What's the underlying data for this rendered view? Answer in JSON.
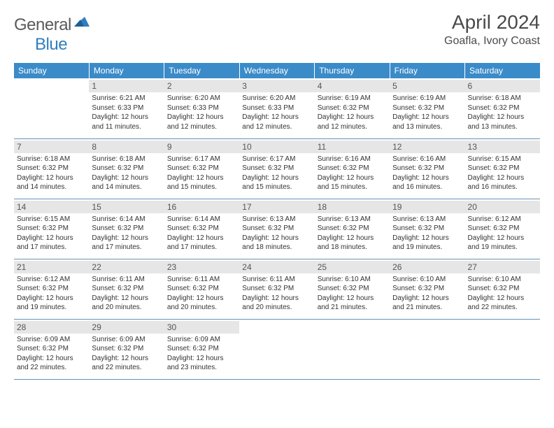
{
  "brand": {
    "text1": "General",
    "text2": "Blue"
  },
  "title": "April 2024",
  "location": "Goafla, Ivory Coast",
  "colors": {
    "header_bg": "#3b8bc9",
    "header_text": "#ffffff",
    "daynum_bg": "#e6e6e6",
    "border": "#6592b8",
    "brand_gray": "#5a5a5a",
    "brand_blue": "#2f7fbf"
  },
  "weekdays": [
    "Sunday",
    "Monday",
    "Tuesday",
    "Wednesday",
    "Thursday",
    "Friday",
    "Saturday"
  ],
  "weeks": [
    [
      {
        "day": "",
        "lines": []
      },
      {
        "day": "1",
        "lines": [
          "Sunrise: 6:21 AM",
          "Sunset: 6:33 PM",
          "Daylight: 12 hours and 11 minutes."
        ]
      },
      {
        "day": "2",
        "lines": [
          "Sunrise: 6:20 AM",
          "Sunset: 6:33 PM",
          "Daylight: 12 hours and 12 minutes."
        ]
      },
      {
        "day": "3",
        "lines": [
          "Sunrise: 6:20 AM",
          "Sunset: 6:33 PM",
          "Daylight: 12 hours and 12 minutes."
        ]
      },
      {
        "day": "4",
        "lines": [
          "Sunrise: 6:19 AM",
          "Sunset: 6:32 PM",
          "Daylight: 12 hours and 12 minutes."
        ]
      },
      {
        "day": "5",
        "lines": [
          "Sunrise: 6:19 AM",
          "Sunset: 6:32 PM",
          "Daylight: 12 hours and 13 minutes."
        ]
      },
      {
        "day": "6",
        "lines": [
          "Sunrise: 6:18 AM",
          "Sunset: 6:32 PM",
          "Daylight: 12 hours and 13 minutes."
        ]
      }
    ],
    [
      {
        "day": "7",
        "lines": [
          "Sunrise: 6:18 AM",
          "Sunset: 6:32 PM",
          "Daylight: 12 hours and 14 minutes."
        ]
      },
      {
        "day": "8",
        "lines": [
          "Sunrise: 6:18 AM",
          "Sunset: 6:32 PM",
          "Daylight: 12 hours and 14 minutes."
        ]
      },
      {
        "day": "9",
        "lines": [
          "Sunrise: 6:17 AM",
          "Sunset: 6:32 PM",
          "Daylight: 12 hours and 15 minutes."
        ]
      },
      {
        "day": "10",
        "lines": [
          "Sunrise: 6:17 AM",
          "Sunset: 6:32 PM",
          "Daylight: 12 hours and 15 minutes."
        ]
      },
      {
        "day": "11",
        "lines": [
          "Sunrise: 6:16 AM",
          "Sunset: 6:32 PM",
          "Daylight: 12 hours and 15 minutes."
        ]
      },
      {
        "day": "12",
        "lines": [
          "Sunrise: 6:16 AM",
          "Sunset: 6:32 PM",
          "Daylight: 12 hours and 16 minutes."
        ]
      },
      {
        "day": "13",
        "lines": [
          "Sunrise: 6:15 AM",
          "Sunset: 6:32 PM",
          "Daylight: 12 hours and 16 minutes."
        ]
      }
    ],
    [
      {
        "day": "14",
        "lines": [
          "Sunrise: 6:15 AM",
          "Sunset: 6:32 PM",
          "Daylight: 12 hours and 17 minutes."
        ]
      },
      {
        "day": "15",
        "lines": [
          "Sunrise: 6:14 AM",
          "Sunset: 6:32 PM",
          "Daylight: 12 hours and 17 minutes."
        ]
      },
      {
        "day": "16",
        "lines": [
          "Sunrise: 6:14 AM",
          "Sunset: 6:32 PM",
          "Daylight: 12 hours and 17 minutes."
        ]
      },
      {
        "day": "17",
        "lines": [
          "Sunrise: 6:13 AM",
          "Sunset: 6:32 PM",
          "Daylight: 12 hours and 18 minutes."
        ]
      },
      {
        "day": "18",
        "lines": [
          "Sunrise: 6:13 AM",
          "Sunset: 6:32 PM",
          "Daylight: 12 hours and 18 minutes."
        ]
      },
      {
        "day": "19",
        "lines": [
          "Sunrise: 6:13 AM",
          "Sunset: 6:32 PM",
          "Daylight: 12 hours and 19 minutes."
        ]
      },
      {
        "day": "20",
        "lines": [
          "Sunrise: 6:12 AM",
          "Sunset: 6:32 PM",
          "Daylight: 12 hours and 19 minutes."
        ]
      }
    ],
    [
      {
        "day": "21",
        "lines": [
          "Sunrise: 6:12 AM",
          "Sunset: 6:32 PM",
          "Daylight: 12 hours and 19 minutes."
        ]
      },
      {
        "day": "22",
        "lines": [
          "Sunrise: 6:11 AM",
          "Sunset: 6:32 PM",
          "Daylight: 12 hours and 20 minutes."
        ]
      },
      {
        "day": "23",
        "lines": [
          "Sunrise: 6:11 AM",
          "Sunset: 6:32 PM",
          "Daylight: 12 hours and 20 minutes."
        ]
      },
      {
        "day": "24",
        "lines": [
          "Sunrise: 6:11 AM",
          "Sunset: 6:32 PM",
          "Daylight: 12 hours and 20 minutes."
        ]
      },
      {
        "day": "25",
        "lines": [
          "Sunrise: 6:10 AM",
          "Sunset: 6:32 PM",
          "Daylight: 12 hours and 21 minutes."
        ]
      },
      {
        "day": "26",
        "lines": [
          "Sunrise: 6:10 AM",
          "Sunset: 6:32 PM",
          "Daylight: 12 hours and 21 minutes."
        ]
      },
      {
        "day": "27",
        "lines": [
          "Sunrise: 6:10 AM",
          "Sunset: 6:32 PM",
          "Daylight: 12 hours and 22 minutes."
        ]
      }
    ],
    [
      {
        "day": "28",
        "lines": [
          "Sunrise: 6:09 AM",
          "Sunset: 6:32 PM",
          "Daylight: 12 hours and 22 minutes."
        ]
      },
      {
        "day": "29",
        "lines": [
          "Sunrise: 6:09 AM",
          "Sunset: 6:32 PM",
          "Daylight: 12 hours and 22 minutes."
        ]
      },
      {
        "day": "30",
        "lines": [
          "Sunrise: 6:09 AM",
          "Sunset: 6:32 PM",
          "Daylight: 12 hours and 23 minutes."
        ]
      },
      {
        "day": "",
        "lines": []
      },
      {
        "day": "",
        "lines": []
      },
      {
        "day": "",
        "lines": []
      },
      {
        "day": "",
        "lines": []
      }
    ]
  ]
}
